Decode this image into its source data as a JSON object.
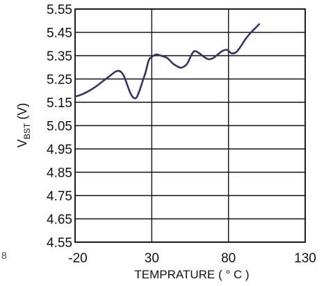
{
  "chart_data": {
    "type": "line",
    "xlabel": "TEMPRATURE ( ° C )",
    "ylabel": {
      "main": "V",
      "sub": "BST",
      "unit": " (V)"
    },
    "xlim": [
      -20,
      130
    ],
    "ylim": [
      4.55,
      5.55
    ],
    "x_ticks": [
      "-20",
      "30",
      "80",
      "130"
    ],
    "y_ticks": [
      "5.55",
      "5.45",
      "5.35",
      "5.25",
      "5.15",
      "5.05",
      "4.95",
      "4.85",
      "4.75",
      "4.65",
      "4.55"
    ],
    "grid": true,
    "line_color": "#2e3470",
    "series": [
      {
        "x": [
          -20,
          -17,
          -12,
          -7,
          -2,
          3,
          6,
          8,
          10,
          12,
          14,
          16,
          18,
          20,
          22,
          24,
          26,
          28,
          30,
          33,
          36,
          40,
          44,
          48,
          50,
          53,
          56,
          58,
          61,
          64,
          67,
          70,
          73,
          76,
          79,
          82,
          85,
          88,
          91,
          94,
          97,
          100
        ],
        "y": [
          5.175,
          5.18,
          5.195,
          5.215,
          5.24,
          5.265,
          5.28,
          5.285,
          5.28,
          5.26,
          5.225,
          5.19,
          5.17,
          5.17,
          5.2,
          5.24,
          5.28,
          5.33,
          5.345,
          5.355,
          5.35,
          5.34,
          5.315,
          5.3,
          5.3,
          5.315,
          5.355,
          5.37,
          5.36,
          5.345,
          5.335,
          5.34,
          5.355,
          5.37,
          5.375,
          5.36,
          5.365,
          5.39,
          5.42,
          5.445,
          5.465,
          5.485
        ]
      }
    ]
  },
  "corner_mark": "8"
}
